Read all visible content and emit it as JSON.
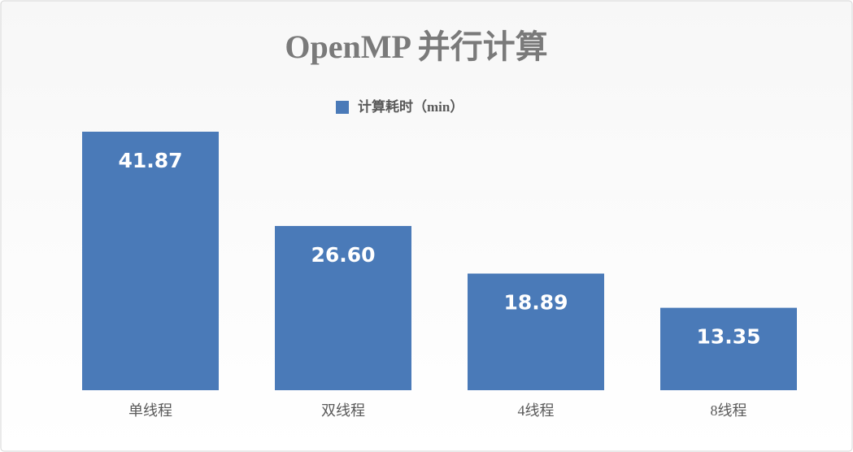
{
  "chart_data": {
    "type": "bar",
    "title": "OpenMP 并行计算",
    "categories": [
      "单线程",
      "双线程",
      "4线程",
      "8线程"
    ],
    "series": [
      {
        "name": "计算耗时（min）",
        "color": "#4a7ab8",
        "values": [
          41.87,
          26.6,
          18.89,
          13.35
        ],
        "value_labels": [
          "41.87",
          "26.60",
          "18.89",
          "13.35"
        ]
      }
    ]
  }
}
